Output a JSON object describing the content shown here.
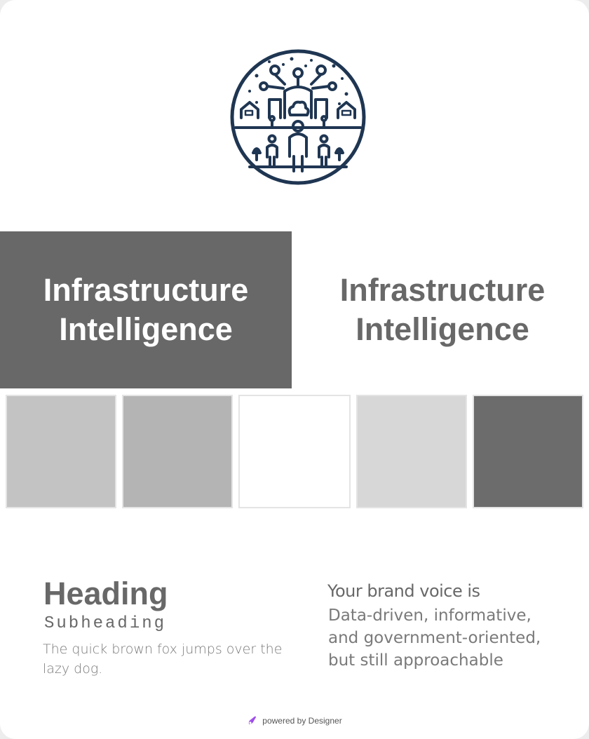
{
  "brand": {
    "title_line1": "Infrastructure",
    "title_line2": "Intelligence",
    "logo_icon": "smart-city-people-icon",
    "logo_color": "#1f3652"
  },
  "palette": [
    "#c3c3c3",
    "#b4b4b4",
    "#ffffff",
    "#d7d7d7",
    "#6c6c6c"
  ],
  "typography": {
    "heading": "Heading",
    "subheading": "Subheading",
    "body": "The quick brown fox jumps over the lazy dog."
  },
  "voice": {
    "title": "Your brand voice is",
    "description": "Data-driven, informative, and government-oriented, but still approachable"
  },
  "footer": {
    "text": "powered by Designer",
    "icon": "designer-logo-icon"
  }
}
